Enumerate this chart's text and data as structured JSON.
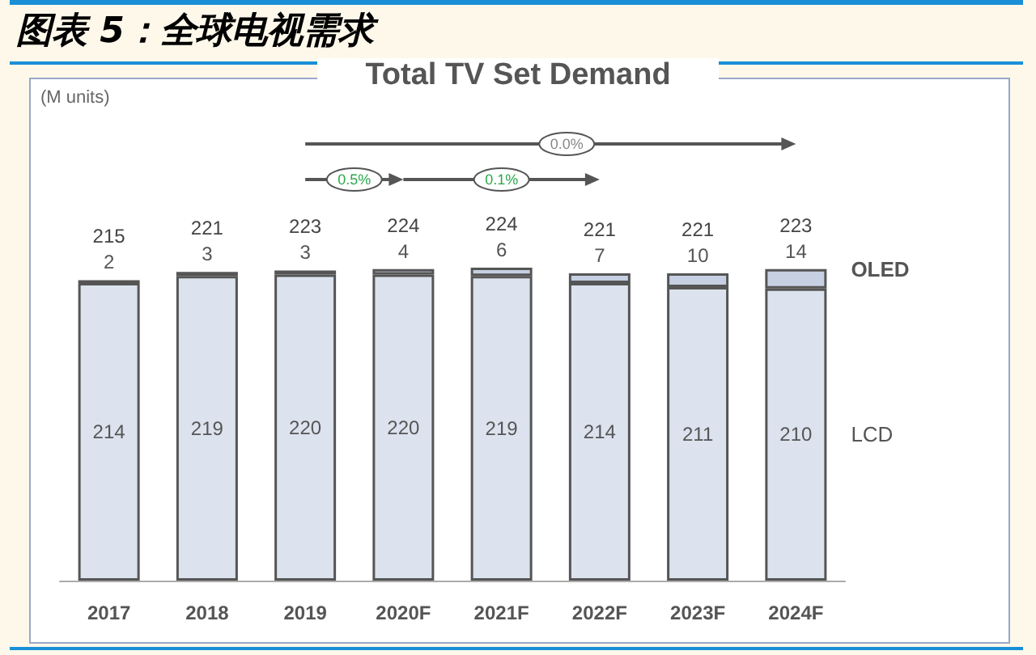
{
  "chart_data": {
    "type": "bar",
    "title": "图表 5：全球电视需求",
    "subtitle": "Total TV Set Demand",
    "categories": [
      "2017",
      "2018",
      "2019",
      "2020F",
      "2021F",
      "2022F",
      "2023F",
      "2024F"
    ],
    "series": [
      {
        "name": "LCD",
        "color": "#dce3ee",
        "values": [
          214,
          219,
          220,
          220,
          219,
          214,
          211,
          210
        ]
      },
      {
        "name": "OLED",
        "color": "#c6d0e2",
        "values": [
          2,
          3,
          3,
          4,
          6,
          7,
          10,
          14
        ]
      }
    ],
    "stacked": true,
    "data_labels": true,
    "totals": [
      "215",
      "221",
      "223",
      "224",
      "224",
      "221",
      "221",
      "223"
    ],
    "annotations": [
      "0.0%",
      "0.5%",
      "0.1%",
      "(M units)"
    ],
    "legend": "right"
  }
}
